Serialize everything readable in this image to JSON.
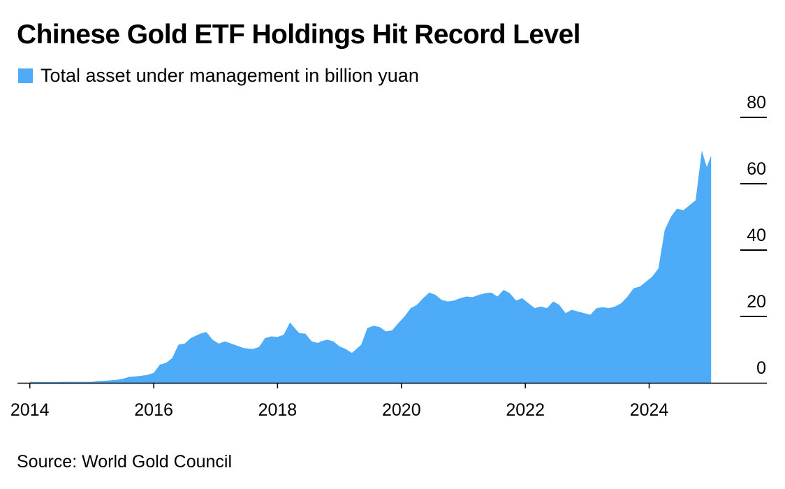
{
  "title": "Chinese Gold ETF Holdings Hit Record Level",
  "source": "Source: World Gold Council",
  "colors": {
    "area": "#4dabf7",
    "axis": "#000000",
    "background": "#ffffff"
  },
  "chart_data": {
    "type": "area",
    "title": "Chinese Gold ETF Holdings Hit Record Level",
    "legend": {
      "entries": [
        "Total asset under management in billion yuan"
      ],
      "position": "top-left"
    },
    "xlabel": "",
    "ylabel": "",
    "y_axis_side": "right",
    "ylim": [
      0,
      80
    ],
    "yticks": [
      0,
      20,
      40,
      60,
      80
    ],
    "xlim": [
      2013.8,
      2025.9
    ],
    "xticks": [
      2014,
      2016,
      2018,
      2020,
      2022,
      2024
    ],
    "grid": false,
    "series": [
      {
        "name": "Total asset under management in billion yuan",
        "color": "#4dabf7",
        "x": [
          2014.0,
          2014.3,
          2014.6,
          2015.0,
          2015.1,
          2015.25,
          2015.4,
          2015.5,
          2015.6,
          2015.75,
          2015.9,
          2016.0,
          2016.1,
          2016.2,
          2016.3,
          2016.4,
          2016.5,
          2016.6,
          2016.75,
          2016.85,
          2016.95,
          2017.05,
          2017.15,
          2017.3,
          2017.45,
          2017.6,
          2017.7,
          2017.8,
          2017.9,
          2018.0,
          2018.1,
          2018.2,
          2018.3,
          2018.35,
          2018.45,
          2018.55,
          2018.65,
          2018.7,
          2018.8,
          2018.9,
          2019.0,
          2019.1,
          2019.2,
          2019.35,
          2019.45,
          2019.55,
          2019.65,
          2019.75,
          2019.85,
          2019.95,
          2020.05,
          2020.15,
          2020.25,
          2020.35,
          2020.45,
          2020.55,
          2020.65,
          2020.75,
          2020.85,
          2020.95,
          2021.05,
          2021.15,
          2021.25,
          2021.35,
          2021.45,
          2021.55,
          2021.65,
          2021.75,
          2021.85,
          2021.95,
          2022.05,
          2022.15,
          2022.25,
          2022.35,
          2022.45,
          2022.55,
          2022.65,
          2022.75,
          2022.85,
          2022.95,
          2023.05,
          2023.15,
          2023.25,
          2023.35,
          2023.45,
          2023.55,
          2023.65,
          2023.75,
          2023.85,
          2023.95,
          2024.05,
          2024.15,
          2024.25,
          2024.35,
          2024.45,
          2024.55,
          2024.65,
          2024.75,
          2024.85,
          2024.93,
          2025.0
        ],
        "values": [
          0.3,
          0.2,
          0.3,
          0.3,
          0.5,
          0.7,
          0.9,
          1.2,
          1.8,
          2.0,
          2.4,
          3.0,
          5.5,
          6.0,
          7.5,
          11.5,
          11.8,
          13.5,
          14.8,
          15.3,
          13.0,
          11.8,
          12.5,
          11.5,
          10.5,
          10.2,
          10.8,
          13.5,
          14.0,
          13.8,
          14.5,
          18.2,
          16.0,
          15.0,
          14.8,
          12.5,
          12.0,
          12.5,
          13.0,
          12.5,
          11.0,
          10.2,
          9.0,
          11.5,
          16.5,
          17.2,
          16.8,
          15.5,
          15.8,
          18.0,
          20.0,
          22.5,
          23.5,
          25.5,
          27.2,
          26.5,
          25.0,
          24.5,
          24.8,
          25.5,
          26.0,
          25.8,
          26.5,
          27.0,
          27.2,
          26.0,
          28.0,
          27.0,
          24.8,
          25.5,
          24.0,
          22.5,
          23.0,
          22.5,
          24.5,
          23.5,
          21.0,
          22.0,
          21.5,
          21.0,
          20.5,
          22.5,
          22.8,
          22.5,
          23.0,
          24.0,
          26.0,
          28.5,
          29.0,
          30.5,
          32.0,
          34.5,
          46.0,
          50.0,
          52.5,
          52.0,
          53.5,
          55.0,
          70.0,
          65.0,
          68.5
        ]
      }
    ]
  }
}
